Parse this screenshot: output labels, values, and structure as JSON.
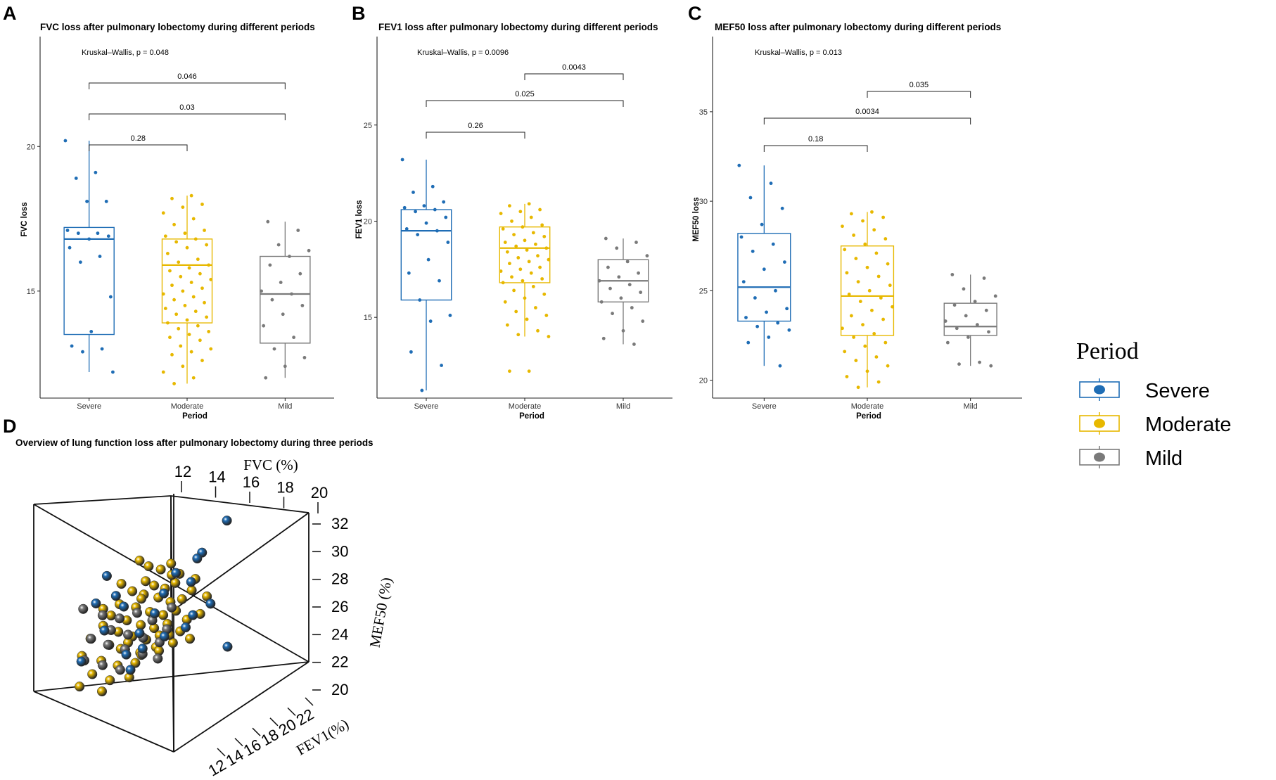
{
  "colors": {
    "Severe": "#1f6db5",
    "Moderate": "#e7b800",
    "Mild": "#7a7a7a"
  },
  "legend": {
    "title": "Period",
    "items": [
      "Severe",
      "Moderate",
      "Mild"
    ]
  },
  "chart_data": [
    {
      "panel": "A",
      "type": "boxplot",
      "title": "FVC loss after pulmonary lobectomy during different periods",
      "xlabel": "Period",
      "ylabel": "FVC loss",
      "ylim": [
        11.3,
        23.8
      ],
      "yticks": [
        15,
        20
      ],
      "categories": [
        "Severe",
        "Moderate",
        "Mild"
      ],
      "kruskal": "Kruskal–Wallis, p = 0.048",
      "boxes": [
        {
          "group": "Severe",
          "min": 12.2,
          "q1": 13.5,
          "median": 16.8,
          "q3": 17.2,
          "max": 20.2
        },
        {
          "group": "Moderate",
          "min": 11.8,
          "q1": 13.9,
          "median": 15.9,
          "q3": 16.8,
          "max": 18.3
        },
        {
          "group": "Mild",
          "min": 12.0,
          "q1": 13.2,
          "median": 14.9,
          "q3": 16.2,
          "max": 17.4
        }
      ],
      "points": {
        "Severe": [
          20.2,
          19.1,
          18.9,
          18.1,
          18.1,
          17.1,
          17.0,
          17.0,
          16.9,
          16.8,
          16.5,
          16.2,
          16.0,
          14.8,
          13.6,
          13.1,
          13.0,
          12.9,
          12.2
        ],
        "Moderate": [
          18.3,
          18.2,
          18.0,
          17.9,
          17.7,
          17.5,
          17.3,
          17.1,
          17.0,
          16.9,
          16.8,
          16.7,
          16.6,
          16.5,
          16.3,
          16.1,
          16.0,
          15.9,
          15.8,
          15.7,
          15.6,
          15.5,
          15.4,
          15.3,
          15.2,
          15.1,
          15.0,
          14.9,
          14.8,
          14.7,
          14.6,
          14.5,
          14.4,
          14.3,
          14.2,
          14.1,
          14.0,
          13.9,
          13.8,
          13.7,
          13.6,
          13.5,
          13.4,
          13.3,
          13.1,
          13.0,
          12.9,
          12.8,
          12.6,
          12.4,
          12.2,
          12.0,
          11.8
        ],
        "Mild": [
          17.4,
          17.1,
          16.6,
          16.4,
          16.2,
          15.9,
          15.6,
          15.3,
          15.0,
          14.9,
          14.7,
          14.5,
          14.2,
          13.8,
          13.4,
          13.0,
          12.7,
          12.4,
          12.0
        ]
      },
      "comparisons": [
        {
          "from": "Severe",
          "to": "Mild",
          "p": "0.046"
        },
        {
          "from": "Severe",
          "to": "Mild",
          "p": "0.03"
        },
        {
          "from": "Severe",
          "to": "Moderate",
          "p": "0.28"
        }
      ]
    },
    {
      "panel": "B",
      "type": "boxplot",
      "title": "FEV1 loss after pulmonary lobectomy during different periods",
      "xlabel": "Period",
      "ylabel": "FEV1 loss",
      "ylim": [
        10.8,
        29.6
      ],
      "yticks": [
        15,
        20,
        25
      ],
      "categories": [
        "Severe",
        "Moderate",
        "Mild"
      ],
      "kruskal": "Kruskal–Wallis, p = 0.0096",
      "boxes": [
        {
          "group": "Severe",
          "min": 11.2,
          "q1": 15.9,
          "median": 19.5,
          "q3": 20.6,
          "max": 23.2
        },
        {
          "group": "Moderate",
          "min": 14.0,
          "q1": 16.8,
          "median": 18.6,
          "q3": 19.7,
          "max": 20.9
        },
        {
          "group": "Mild",
          "min": 13.6,
          "q1": 15.8,
          "median": 16.9,
          "q3": 18.0,
          "max": 19.1
        }
      ],
      "points": {
        "Severe": [
          23.2,
          21.8,
          21.5,
          21.0,
          20.8,
          20.7,
          20.6,
          20.5,
          20.2,
          19.9,
          19.6,
          19.5,
          19.3,
          18.9,
          18.0,
          17.3,
          16.9,
          15.9,
          15.1,
          14.8,
          13.2,
          12.5,
          11.2
        ],
        "Moderate": [
          20.9,
          20.8,
          20.6,
          20.5,
          20.4,
          20.2,
          20.0,
          19.8,
          19.7,
          19.6,
          19.4,
          19.3,
          19.2,
          19.0,
          18.9,
          18.8,
          18.7,
          18.6,
          18.5,
          18.4,
          18.2,
          18.1,
          18.0,
          17.9,
          17.8,
          17.6,
          17.5,
          17.4,
          17.3,
          17.1,
          17.0,
          16.9,
          16.8,
          16.6,
          16.4,
          16.2,
          16.0,
          15.8,
          15.5,
          15.3,
          15.1,
          14.9,
          14.6,
          14.3,
          14.1,
          14.0,
          12.2,
          12.2
        ],
        "Mild": [
          19.1,
          18.9,
          18.6,
          18.2,
          17.9,
          17.6,
          17.3,
          17.1,
          16.9,
          16.7,
          16.5,
          16.3,
          16.0,
          15.8,
          15.5,
          15.2,
          14.8,
          14.3,
          13.9,
          13.6
        ]
      },
      "comparisons": [
        {
          "from": "Moderate",
          "to": "Mild",
          "p": "0.0043"
        },
        {
          "from": "Severe",
          "to": "Mild",
          "p": "0.025"
        },
        {
          "from": "Severe",
          "to": "Moderate",
          "p": "0.26"
        }
      ]
    },
    {
      "panel": "C",
      "type": "boxplot",
      "title": "MEF50 loss after pulmonary lobectomy during different periods",
      "xlabel": "Period",
      "ylabel": "MEF50 loss",
      "ylim": [
        19.0,
        39.2
      ],
      "yticks": [
        20,
        25,
        30,
        35
      ],
      "categories": [
        "Severe",
        "Moderate",
        "Mild"
      ],
      "kruskal": "Kruskal–Wallis, p = 0.013",
      "boxes": [
        {
          "group": "Severe",
          "min": 20.8,
          "q1": 23.3,
          "median": 25.2,
          "q3": 28.2,
          "max": 32.0
        },
        {
          "group": "Moderate",
          "min": 19.6,
          "q1": 22.5,
          "median": 24.7,
          "q3": 27.5,
          "max": 29.4
        },
        {
          "group": "Mild",
          "min": 20.8,
          "q1": 22.5,
          "median": 23.0,
          "q3": 24.3,
          "max": 25.9
        }
      ],
      "points": {
        "Severe": [
          32.0,
          31.0,
          30.2,
          29.6,
          28.7,
          28.0,
          27.6,
          27.2,
          26.6,
          26.2,
          25.5,
          25.0,
          24.6,
          24.0,
          23.8,
          23.5,
          23.2,
          23.0,
          22.8,
          22.4,
          22.1,
          20.8
        ],
        "Moderate": [
          29.4,
          29.3,
          29.1,
          28.9,
          28.6,
          28.4,
          28.1,
          27.9,
          27.6,
          27.3,
          27.1,
          26.8,
          26.5,
          26.3,
          26.0,
          25.8,
          25.5,
          25.3,
          25.0,
          24.8,
          24.6,
          24.4,
          24.1,
          23.9,
          23.6,
          23.4,
          23.1,
          22.9,
          22.6,
          22.4,
          22.1,
          21.9,
          21.6,
          21.3,
          21.1,
          20.8,
          20.5,
          20.2,
          19.9,
          19.6
        ],
        "Mild": [
          25.9,
          25.7,
          25.1,
          24.7,
          24.4,
          24.2,
          23.9,
          23.6,
          23.3,
          23.1,
          22.9,
          22.7,
          22.4,
          22.1,
          21.0,
          20.9,
          20.8
        ]
      },
      "comparisons": [
        {
          "from": "Moderate",
          "to": "Mild",
          "p": "0.035"
        },
        {
          "from": "Severe",
          "to": "Mild",
          "p": "0.0034"
        },
        {
          "from": "Severe",
          "to": "Moderate",
          "p": "0.18"
        }
      ]
    },
    {
      "panel": "D",
      "type": "scatter3d",
      "title": "Overview of lung function loss after pulmonary lobectomy during three periods",
      "axes": {
        "x": {
          "label": "FVC (%)",
          "ticks": [
            12,
            14,
            16,
            18,
            20
          ]
        },
        "y": {
          "label": "FEV1(%)",
          "ticks": [
            12,
            14,
            16,
            18,
            20,
            22
          ]
        },
        "z": {
          "label": "MEF50 (%)",
          "ticks": [
            20,
            22,
            24,
            26,
            28,
            30,
            32
          ]
        }
      },
      "series": [
        {
          "name": "Severe",
          "points": [
            [
              19.7,
              21.5,
              31.8
            ],
            [
              18.3,
              20.2,
              29.6
            ],
            [
              18.0,
              20.0,
              29.2
            ],
            [
              17.6,
              19.8,
              27.6
            ],
            [
              13.4,
              14.3,
              27.9
            ],
            [
              12.9,
              13.5,
              26.0
            ],
            [
              15.8,
              17.4,
              25.4
            ],
            [
              17.2,
              19.7,
              24.5
            ],
            [
              19.5,
              22.0,
              23.2
            ],
            [
              15.0,
              17.0,
              23.0
            ],
            [
              13.0,
              14.7,
              24.2
            ],
            [
              12.2,
              12.5,
              22.0
            ],
            [
              14.6,
              15.8,
              21.5
            ],
            [
              16.1,
              18.3,
              26.8
            ],
            [
              14.4,
              15.1,
              25.8
            ],
            [
              16.8,
              18.9,
              28.2
            ],
            [
              17.9,
              19.5,
              25.3
            ],
            [
              15.2,
              16.1,
              24.0
            ],
            [
              16.5,
              17.6,
              23.8
            ],
            [
              14.0,
              16.3,
              22.6
            ],
            [
              18.8,
              20.6,
              26.1
            ],
            [
              13.5,
              15.6,
              26.6
            ]
          ]
        },
        {
          "name": "Moderate",
          "points": [
            [
              15.0,
              16.5,
              29.0
            ],
            [
              15.6,
              16.8,
              28.6
            ],
            [
              16.2,
              17.6,
              28.4
            ],
            [
              16.8,
              18.1,
              28.8
            ],
            [
              17.3,
              18.5,
              28.1
            ],
            [
              15.3,
              16.9,
              27.6
            ],
            [
              15.8,
              17.3,
              27.3
            ],
            [
              16.4,
              17.9,
              27.1
            ],
            [
              16.9,
              18.6,
              27.5
            ],
            [
              14.6,
              16.1,
              26.9
            ],
            [
              15.1,
              17.0,
              26.7
            ],
            [
              15.9,
              17.8,
              26.5
            ],
            [
              16.6,
              18.4,
              26.2
            ],
            [
              17.2,
              19.1,
              26.4
            ],
            [
              17.8,
              19.5,
              27.0
            ],
            [
              13.9,
              15.4,
              26.0
            ],
            [
              14.8,
              16.3,
              25.8
            ],
            [
              15.5,
              17.2,
              25.5
            ],
            [
              16.2,
              18.0,
              25.3
            ],
            [
              16.9,
              18.7,
              25.6
            ],
            [
              17.5,
              19.3,
              25.0
            ],
            [
              13.6,
              14.6,
              25.2
            ],
            [
              14.3,
              15.8,
              24.9
            ],
            [
              15.0,
              16.7,
              24.6
            ],
            [
              15.7,
              17.5,
              24.4
            ],
            [
              16.4,
              18.3,
              24.7
            ],
            [
              17.1,
              19.0,
              24.2
            ],
            [
              18.2,
              20.1,
              25.4
            ],
            [
              13.1,
              14.3,
              24.5
            ],
            [
              13.9,
              15.2,
              24.1
            ],
            [
              14.6,
              16.1,
              23.8
            ],
            [
              15.3,
              17.0,
              23.6
            ],
            [
              16.0,
              17.8,
              23.9
            ],
            [
              16.7,
              18.6,
              23.4
            ],
            [
              17.6,
              19.6,
              23.7
            ],
            [
              12.5,
              13.4,
              23.6
            ],
            [
              13.4,
              14.7,
              23.2
            ],
            [
              14.2,
              15.7,
              22.9
            ],
            [
              15.0,
              16.6,
              22.7
            ],
            [
              15.8,
              17.6,
              23.1
            ],
            [
              12.1,
              12.8,
              22.4
            ],
            [
              13.0,
              14.2,
              22.1
            ],
            [
              13.8,
              15.3,
              21.8
            ],
            [
              14.7,
              16.4,
              22.0
            ],
            [
              12.4,
              13.9,
              21.2
            ],
            [
              13.3,
              15.0,
              20.8
            ],
            [
              14.4,
              16.0,
              21.0
            ],
            [
              12.0,
              12.6,
              20.3
            ],
            [
              13.1,
              14.1,
              20.0
            ],
            [
              18.6,
              20.4,
              26.6
            ],
            [
              17.9,
              19.9,
              27.8
            ],
            [
              14.0,
              15.5,
              27.4
            ],
            [
              15.4,
              16.0,
              22.5
            ],
            [
              16.3,
              17.1,
              22.8
            ],
            [
              12.8,
              14.9,
              25.7
            ],
            [
              17.0,
              17.8,
              28.0
            ],
            [
              14.9,
              14.8,
              23.3
            ],
            [
              16.1,
              19.2,
              24.0
            ],
            [
              15.7,
              15.4,
              26.3
            ],
            [
              13.6,
              16.2,
              23.0
            ]
          ]
        },
        {
          "name": "Mild",
          "points": [
            [
              12.3,
              12.6,
              25.6
            ],
            [
              13.2,
              14.0,
              25.2
            ],
            [
              14.1,
              15.0,
              25.0
            ],
            [
              15.0,
              16.1,
              25.4
            ],
            [
              15.8,
              17.0,
              24.9
            ],
            [
              16.6,
              17.8,
              24.3
            ],
            [
              13.6,
              14.6,
              24.2
            ],
            [
              14.5,
              15.6,
              23.9
            ],
            [
              15.3,
              16.5,
              23.7
            ],
            [
              16.2,
              17.4,
              23.4
            ],
            [
              12.5,
              13.5,
              23.6
            ],
            [
              13.4,
              14.5,
              23.2
            ],
            [
              14.3,
              15.5,
              22.9
            ],
            [
              15.2,
              16.6,
              22.6
            ],
            [
              16.0,
              17.5,
              22.3
            ],
            [
              12.2,
              13.0,
              22.1
            ],
            [
              13.1,
              14.2,
              21.8
            ],
            [
              14.0,
              15.3,
              21.5
            ],
            [
              16.8,
              18.2,
              25.8
            ]
          ]
        }
      ]
    }
  ]
}
